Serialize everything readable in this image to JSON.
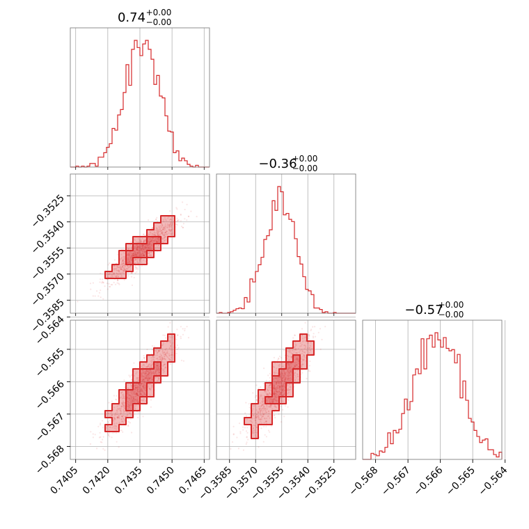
{
  "chart_data": {
    "type": "corner",
    "color": "#d62728",
    "grid": true,
    "parameters": [
      {
        "title_value": "0.74",
        "title_plus": "+0.00",
        "title_minus": "−0.00",
        "range": [
          0.74025,
          0.74675
        ],
        "ticks": [
          0.7405,
          0.742,
          0.7435,
          0.745,
          0.7465
        ],
        "tick_labels": [
          "0.7405",
          "0.7420",
          "0.7435",
          "0.7450",
          "0.7465"
        ],
        "mean": 0.7436,
        "std": 0.0008
      },
      {
        "title_value": "−0.36",
        "title_plus": "+0.00",
        "title_minus": "−0.00",
        "range": [
          -0.35925,
          -0.35125
        ],
        "ticks": [
          -0.3585,
          -0.357,
          -0.3555,
          -0.354,
          -0.3525
        ],
        "tick_labels": [
          "−0.3585",
          "−0.3570",
          "−0.3555",
          "−0.3540",
          "−0.3525"
        ],
        "mean": -0.3556,
        "std": 0.0009
      },
      {
        "title_value": "−0.57",
        "title_plus": "+0.00",
        "title_minus": "−0.00",
        "range": [
          -0.5684,
          -0.5641
        ],
        "ticks": [
          -0.568,
          -0.567,
          -0.566,
          -0.565,
          -0.564
        ],
        "tick_labels": [
          "−0.568",
          "−0.567",
          "−0.566",
          "−0.565",
          "−0.564"
        ],
        "mean": -0.5661,
        "std": 0.00062
      }
    ],
    "correlations": {
      "1_0": 0.9,
      "2_0": 0.9,
      "2_1": 0.6
    }
  }
}
